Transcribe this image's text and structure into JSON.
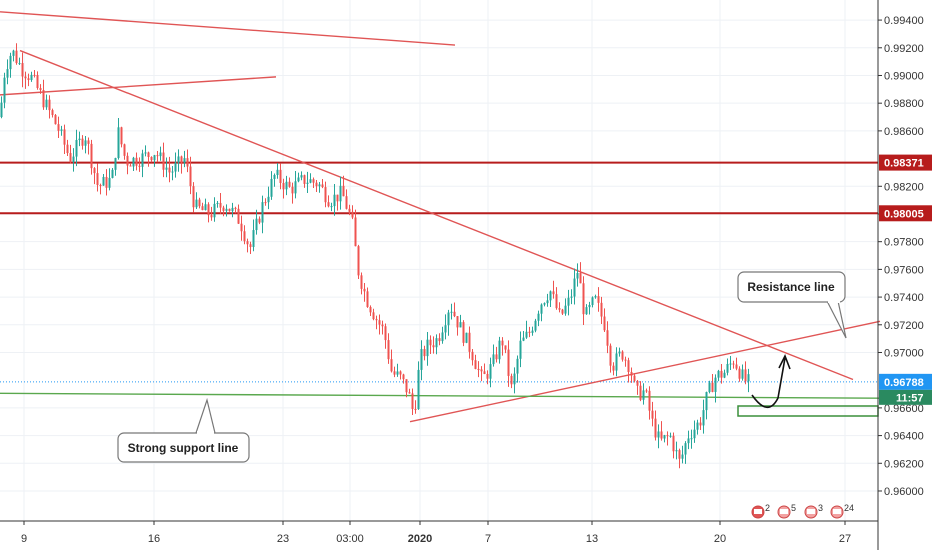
{
  "chart_data": {
    "type": "candlestick",
    "title": "",
    "y_axis": {
      "ticks": [
        "0.99400",
        "0.99200",
        "0.99000",
        "0.98800",
        "0.98600",
        "0.98200",
        "0.98000",
        "0.97800",
        "0.97600",
        "0.97400",
        "0.97200",
        "0.97000",
        "0.96600",
        "0.96400",
        "0.96200",
        "0.96000"
      ],
      "range": [
        0.9587,
        0.9952
      ],
      "position": "right"
    },
    "x_axis": {
      "ticks": [
        {
          "label": "9",
          "bold": false
        },
        {
          "label": "16",
          "bold": false
        },
        {
          "label": "23",
          "bold": false
        },
        {
          "label": "03:00",
          "bold": false
        },
        {
          "label": "2020",
          "bold": true
        },
        {
          "label": "7",
          "bold": false
        },
        {
          "label": "13",
          "bold": false
        },
        {
          "label": "20",
          "bold": false
        },
        {
          "label": "27",
          "bold": false
        }
      ]
    },
    "price_path": [
      [
        0,
        0.987
      ],
      [
        5,
        0.9905
      ],
      [
        12,
        0.9918
      ],
      [
        22,
        0.9905
      ],
      [
        32,
        0.9898
      ],
      [
        45,
        0.988
      ],
      [
        58,
        0.9862
      ],
      [
        70,
        0.984
      ],
      [
        85,
        0.9858
      ],
      [
        98,
        0.982
      ],
      [
        112,
        0.9825
      ],
      [
        118,
        0.986
      ],
      [
        126,
        0.9838
      ],
      [
        140,
        0.984
      ],
      [
        155,
        0.9845
      ],
      [
        170,
        0.983
      ],
      [
        185,
        0.984
      ],
      [
        195,
        0.9805
      ],
      [
        210,
        0.98
      ],
      [
        225,
        0.9808
      ],
      [
        240,
        0.9795
      ],
      [
        250,
        0.9775
      ],
      [
        262,
        0.9805
      ],
      [
        275,
        0.9828
      ],
      [
        290,
        0.9818
      ],
      [
        305,
        0.9825
      ],
      [
        318,
        0.9822
      ],
      [
        330,
        0.981
      ],
      [
        342,
        0.9815
      ],
      [
        352,
        0.9795
      ],
      [
        358,
        0.976
      ],
      [
        366,
        0.974
      ],
      [
        376,
        0.9725
      ],
      [
        384,
        0.9715
      ],
      [
        392,
        0.9685
      ],
      [
        400,
        0.9682
      ],
      [
        408,
        0.9672
      ],
      [
        414,
        0.9655
      ],
      [
        420,
        0.9695
      ],
      [
        428,
        0.9705
      ],
      [
        438,
        0.971
      ],
      [
        450,
        0.9735
      ],
      [
        462,
        0.9715
      ],
      [
        472,
        0.97
      ],
      [
        482,
        0.968
      ],
      [
        492,
        0.969
      ],
      [
        502,
        0.971
      ],
      [
        512,
        0.9672
      ],
      [
        520,
        0.9705
      ],
      [
        530,
        0.9715
      ],
      [
        540,
        0.9735
      ],
      [
        550,
        0.9745
      ],
      [
        560,
        0.9725
      ],
      [
        570,
        0.9738
      ],
      [
        578,
        0.976
      ],
      [
        585,
        0.9725
      ],
      [
        595,
        0.9738
      ],
      [
        605,
        0.972
      ],
      [
        612,
        0.969
      ],
      [
        622,
        0.97
      ],
      [
        630,
        0.969
      ],
      [
        636,
        0.967
      ],
      [
        645,
        0.9672
      ],
      [
        652,
        0.965
      ],
      [
        660,
        0.9635
      ],
      [
        670,
        0.964
      ],
      [
        680,
        0.962
      ],
      [
        688,
        0.964
      ],
      [
        700,
        0.965
      ],
      [
        708,
        0.967
      ],
      [
        716,
        0.9683
      ],
      [
        724,
        0.9685
      ],
      [
        734,
        0.9695
      ],
      [
        744,
        0.968
      ],
      [
        750,
        0.9678
      ]
    ],
    "lines": [
      {
        "name": "Resistance line",
        "color": "#e05555",
        "points": [
          [
            20,
            0.9918
          ],
          [
            853,
            0.96805
          ]
        ]
      },
      {
        "name": "upper-trendline",
        "color": "#e05555",
        "points": [
          [
            0,
            0.9946
          ],
          [
            455,
            0.9922
          ]
        ]
      },
      {
        "name": "rising-line-left",
        "color": "#e05555",
        "points": [
          [
            0,
            0.9886
          ],
          [
            276,
            0.9899
          ]
        ]
      },
      {
        "name": "rising-line-right",
        "color": "#e05555",
        "points": [
          [
            410,
            0.965
          ],
          [
            880,
            0.97225
          ]
        ]
      },
      {
        "name": "Strong support line",
        "color": "#5aa84e",
        "points": [
          [
            0,
            0.96705
          ],
          [
            880,
            0.9667
          ]
        ]
      }
    ],
    "horizontal_levels": [
      {
        "value": "0.98371",
        "color": "#b71c1c"
      },
      {
        "value": "0.98005",
        "color": "#b71c1c"
      }
    ],
    "current_price": {
      "value": "0.96788",
      "color": "#2196f3"
    },
    "countdown": "11:57",
    "annotations": [
      {
        "text": "Resistance line",
        "target": "resistance"
      },
      {
        "text": "Strong support line",
        "target": "support"
      }
    ],
    "colors": {
      "up": "#26a69a",
      "down": "#ef5350",
      "grid": "#eef1f5",
      "axis": "#333333"
    },
    "grid": true,
    "indicators": [
      "2",
      "5",
      "3",
      "24"
    ]
  }
}
